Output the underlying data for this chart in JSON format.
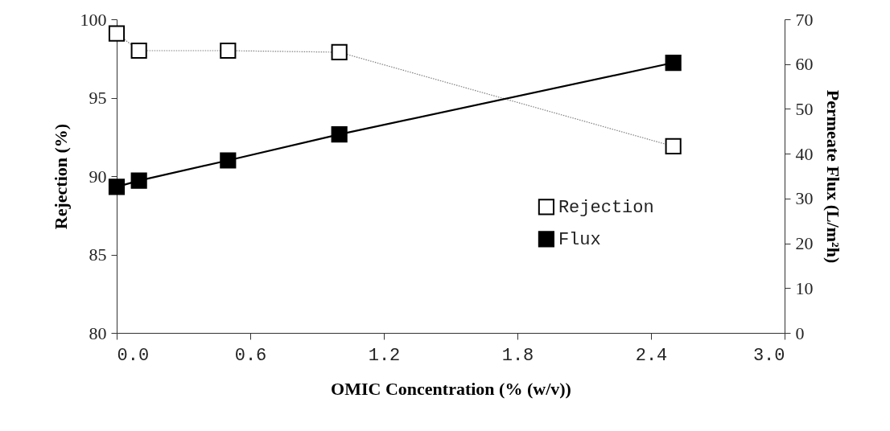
{
  "chart_data": {
    "type": "line",
    "xlabel": "OMIC Concentration (% (w/v))",
    "ylabel": "Rejection (%)",
    "y2label": "Permeate Flux (L/m²h)",
    "x": [
      0,
      0.1,
      0.5,
      1.0,
      2.5
    ],
    "series": [
      {
        "name": "Rejection",
        "color": "#808080",
        "line_style": "dotted",
        "values": [
          99.1,
          98.0,
          98.0,
          97.9,
          91.9
        ]
      },
      {
        "name": "Flux",
        "color": "#000000",
        "line_style": "solid",
        "axis": "y2",
        "values": [
          32.6,
          34.0,
          38.5,
          44.3,
          60.3
        ]
      }
    ],
    "xlim": [
      0,
      3
    ],
    "xticks": [
      {
        "value": 0,
        "label": "0.0"
      },
      0.6,
      1.2,
      1.8,
      2.4,
      {
        "value": 3,
        "label": "3.0"
      }
    ],
    "ylim": [
      80,
      100
    ],
    "yticks": [
      80,
      85,
      90,
      95,
      100
    ],
    "y2lim": [
      0,
      70
    ],
    "y2ticks": [
      0,
      10,
      20,
      30,
      40,
      50,
      60,
      70
    ],
    "marker": "square",
    "legend": "right",
    "grid": false
  }
}
